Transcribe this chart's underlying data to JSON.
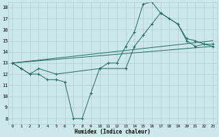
{
  "xlabel": "Humidex (Indice chaleur)",
  "background_color": "#cce8e8",
  "grid_color": "#aacccc",
  "line_color": "#1a6b60",
  "xlim": [
    -0.5,
    23.5
  ],
  "ylim": [
    7.5,
    18.5
  ],
  "xticks": [
    0,
    1,
    2,
    3,
    4,
    5,
    6,
    7,
    8,
    9,
    10,
    11,
    12,
    13,
    14,
    15,
    16,
    17,
    18,
    19,
    20,
    21,
    22,
    23
  ],
  "yticks": [
    8,
    9,
    10,
    11,
    12,
    13,
    14,
    15,
    16,
    17,
    18
  ],
  "line1_x": [
    0,
    1,
    2,
    3,
    4,
    5,
    6,
    7,
    8,
    9,
    10,
    11,
    12,
    13,
    14,
    15,
    16,
    17,
    18,
    19,
    20,
    21,
    22,
    23
  ],
  "line1_y": [
    13,
    12.5,
    12,
    12,
    11.5,
    11.5,
    11.3,
    8,
    8,
    10.3,
    12.5,
    13,
    13,
    14.5,
    15.8,
    18.3,
    18.5,
    17.5,
    17,
    16.5,
    15,
    14.5,
    14.7,
    14.5
  ],
  "line2_x": [
    0,
    1,
    2,
    3,
    5,
    10,
    13,
    14,
    15,
    16,
    17,
    19,
    20,
    21,
    22,
    23
  ],
  "line2_y": [
    13,
    12.5,
    12,
    12.5,
    12,
    12.5,
    12.5,
    14.5,
    15.5,
    16.5,
    17.5,
    16.5,
    15.2,
    15,
    14.7,
    14.7
  ],
  "line3_x": [
    0,
    23
  ],
  "line3_y": [
    13,
    14.5
  ],
  "line4_x": [
    0,
    23
  ],
  "line4_y": [
    13,
    15.0
  ]
}
